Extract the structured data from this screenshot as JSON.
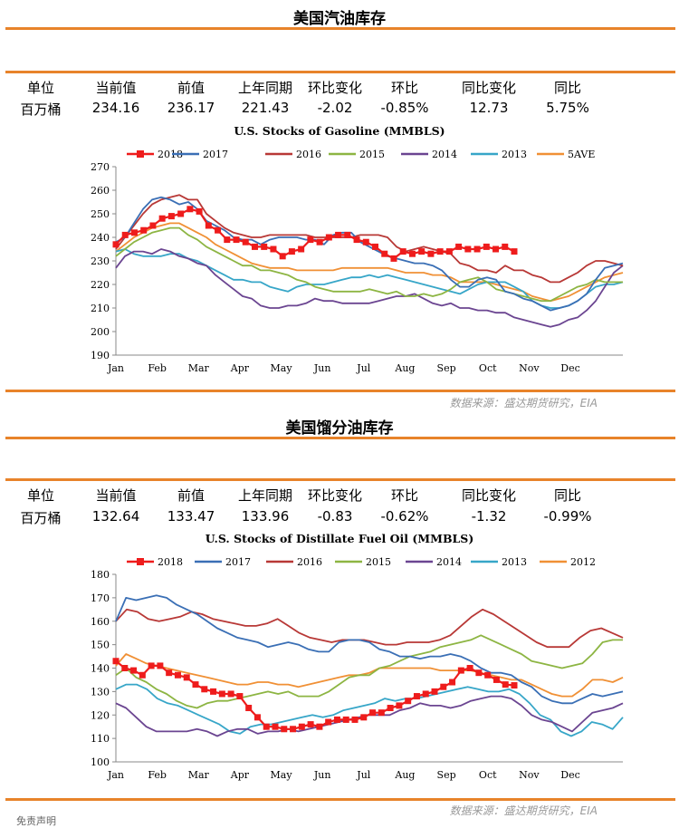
{
  "source_text": "数据来源：盛达期货研究，EIA",
  "footnote": "免责声明",
  "panels": [
    {
      "title": "美国汽油库存",
      "stats": {
        "headers": [
          "单位",
          "当前值",
          "前值",
          "上年同期",
          "环比变化",
          "环比",
          "同比变化",
          "同比"
        ],
        "values": [
          "百万桶",
          "234.16",
          "236.17",
          "221.43",
          "-2.02",
          "-0.85%",
          "12.73",
          "5.75%"
        ]
      }
    },
    {
      "title": "美国馏分油库存",
      "stats": {
        "headers": [
          "单位",
          "当前值",
          "前值",
          "上年同期",
          "环比变化",
          "环比",
          "同比变化",
          "同比"
        ],
        "values": [
          "百万桶",
          "132.64",
          "133.47",
          "133.96",
          "-0.83",
          "-0.62%",
          "-1.32",
          "-0.99%"
        ]
      }
    }
  ],
  "chart_data": [
    {
      "type": "line",
      "title": "U.S. Stocks of  Gasoline (MMBLS)",
      "x_ticks": [
        "Jan",
        "Feb",
        "Mar",
        "Apr",
        "May",
        "Jun",
        "Jul",
        "Aug",
        "Sep",
        "Oct",
        "Nov",
        "Dec"
      ],
      "x_range": [
        "Jan",
        "Dec"
      ],
      "ylim": [
        190,
        270
      ],
      "y_ticks": [
        190,
        200,
        210,
        220,
        230,
        240,
        250,
        260,
        270
      ],
      "grid": false,
      "legend_position": "top",
      "series": [
        {
          "name": "2018",
          "color": "#ee1c1c",
          "markers": true,
          "values": [
            237,
            241,
            242,
            243,
            245,
            248,
            249,
            250,
            252,
            251,
            245,
            243,
            239,
            239,
            238,
            236,
            236,
            235,
            232,
            234,
            235,
            239,
            238,
            240,
            241,
            241,
            239,
            238,
            236,
            233,
            231,
            234,
            233,
            234,
            233,
            234,
            234,
            236,
            235,
            235,
            236,
            235,
            236,
            234
          ]
        },
        {
          "name": "2017",
          "color": "#3a6fb5",
          "values": [
            238,
            240,
            246,
            252,
            256,
            257,
            256,
            254,
            255,
            252,
            247,
            245,
            243,
            240,
            239,
            239,
            237,
            239,
            240,
            240,
            240,
            239,
            239,
            237,
            241,
            242,
            242,
            238,
            236,
            234,
            232,
            231,
            230,
            229,
            229,
            228,
            226,
            222,
            219,
            219,
            222,
            223,
            222,
            217,
            216,
            214,
            213,
            211,
            209,
            210,
            211,
            213,
            216,
            222,
            227,
            228,
            229
          ]
        },
        {
          "name": "2016",
          "color": "#b83836",
          "values": [
            235,
            240,
            245,
            250,
            254,
            256,
            257,
            258,
            256,
            256,
            250,
            247,
            244,
            242,
            241,
            240,
            240,
            241,
            241,
            241,
            241,
            241,
            240,
            240,
            240,
            240,
            240,
            241,
            241,
            241,
            240,
            236,
            234,
            235,
            236,
            235,
            234,
            233,
            229,
            228,
            226,
            226,
            225,
            228,
            226,
            226,
            224,
            223,
            221,
            221,
            223,
            225,
            228,
            230,
            230,
            229,
            228
          ]
        },
        {
          "name": "2015",
          "color": "#8db543",
          "values": [
            232,
            235,
            238,
            240,
            242,
            243,
            244,
            244,
            241,
            239,
            236,
            234,
            232,
            230,
            228,
            228,
            226,
            226,
            225,
            224,
            222,
            221,
            219,
            218,
            217,
            217,
            217,
            217,
            218,
            217,
            216,
            217,
            215,
            215,
            216,
            215,
            216,
            218,
            221,
            222,
            223,
            221,
            218,
            217,
            216,
            215,
            214,
            213,
            213,
            215,
            217,
            219,
            220,
            222,
            221,
            221,
            221
          ]
        },
        {
          "name": "2014",
          "color": "#6b4591",
          "values": [
            227,
            232,
            234,
            234,
            233,
            235,
            234,
            232,
            231,
            229,
            228,
            224,
            221,
            218,
            215,
            214,
            211,
            210,
            210,
            211,
            211,
            212,
            214,
            213,
            213,
            212,
            212,
            212,
            212,
            213,
            214,
            215,
            215,
            216,
            214,
            212,
            211,
            212,
            210,
            210,
            209,
            209,
            208,
            208,
            206,
            205,
            204,
            203,
            202,
            203,
            205,
            206,
            209,
            213,
            219,
            225,
            228
          ]
        },
        {
          "name": "2013",
          "color": "#37a6c8",
          "values": [
            234,
            235,
            233,
            232,
            232,
            232,
            233,
            233,
            231,
            230,
            228,
            226,
            224,
            222,
            222,
            221,
            221,
            219,
            218,
            217,
            219,
            220,
            220,
            220,
            221,
            222,
            223,
            223,
            224,
            223,
            224,
            223,
            222,
            221,
            220,
            219,
            218,
            217,
            216,
            218,
            220,
            221,
            221,
            221,
            219,
            217,
            213,
            211,
            210,
            210,
            211,
            213,
            216,
            219,
            220,
            220,
            221
          ]
        },
        {
          "name": "5AVE",
          "color": "#f09035",
          "values": [
            234,
            237,
            240,
            242,
            244,
            245,
            246,
            246,
            244,
            242,
            240,
            237,
            235,
            233,
            231,
            229,
            228,
            227,
            227,
            227,
            226,
            226,
            226,
            226,
            226,
            227,
            227,
            227,
            227,
            227,
            227,
            226,
            225,
            225,
            225,
            224,
            224,
            223,
            221,
            221,
            221,
            221,
            220,
            219,
            218,
            217,
            215,
            214,
            213,
            214,
            215,
            217,
            219,
            221,
            223,
            224,
            225
          ]
        }
      ]
    },
    {
      "type": "line",
      "title": "U.S.  Stocks of Distillate Fuel Oil (MMBLS)",
      "x_ticks": [
        "Jan",
        "Feb",
        "Mar",
        "Apr",
        "May",
        "Jun",
        "Jul",
        "Aug",
        "Sep",
        "Oct",
        "Nov",
        "Dec"
      ],
      "x_range": [
        "Jan",
        "Dec"
      ],
      "ylim": [
        100,
        180
      ],
      "y_ticks": [
        100,
        110,
        120,
        130,
        140,
        150,
        160,
        170,
        180
      ],
      "grid": false,
      "legend_position": "top",
      "series": [
        {
          "name": "2018",
          "color": "#ee1c1c",
          "markers": true,
          "values": [
            143,
            140,
            139,
            137,
            141,
            141,
            138,
            137,
            136,
            133,
            131,
            130,
            129,
            129,
            128,
            123,
            119,
            115,
            115,
            114,
            114,
            115,
            116,
            115,
            117,
            118,
            118,
            118,
            119,
            121,
            121,
            123,
            124,
            126,
            128,
            129,
            130,
            132,
            134,
            139,
            140,
            138,
            137,
            135,
            133,
            132.64
          ]
        },
        {
          "name": "2017",
          "color": "#3a6fb5",
          "values": [
            160,
            170,
            169,
            170,
            171,
            170,
            167,
            165,
            163,
            160,
            157,
            155,
            153,
            152,
            151,
            149,
            150,
            151,
            150,
            148,
            147,
            147,
            151,
            152,
            152,
            151,
            148,
            147,
            145,
            145,
            144,
            145,
            145,
            146,
            145,
            143,
            140,
            138,
            138,
            137,
            134,
            132,
            128,
            126,
            125,
            125,
            127,
            129,
            128,
            129,
            130
          ]
        },
        {
          "name": "2016",
          "color": "#b83836",
          "values": [
            160,
            165,
            164,
            161,
            160,
            161,
            162,
            164,
            163,
            161,
            160,
            159,
            158,
            158,
            159,
            161,
            158,
            155,
            153,
            152,
            151,
            152,
            152,
            152,
            151,
            150,
            150,
            151,
            151,
            151,
            152,
            154,
            158,
            162,
            165,
            163,
            160,
            157,
            154,
            151,
            149,
            149,
            149,
            153,
            156,
            157,
            155,
            153
          ]
        },
        {
          "name": "2015",
          "color": "#8db543",
          "values": [
            137,
            140,
            136,
            134,
            131,
            129,
            126,
            124,
            123,
            125,
            126,
            126,
            127,
            128,
            129,
            130,
            129,
            130,
            128,
            128,
            128,
            130,
            133,
            136,
            137,
            137,
            140,
            141,
            143,
            145,
            146,
            147,
            149,
            150,
            151,
            152,
            154,
            152,
            150,
            148,
            146,
            143,
            142,
            141,
            140,
            141,
            142,
            146,
            151,
            152,
            152
          ]
        },
        {
          "name": "2014",
          "color": "#6b4591",
          "values": [
            125,
            123,
            119,
            115,
            113,
            113,
            113,
            113,
            114,
            113,
            111,
            113,
            114,
            114,
            112,
            113,
            113,
            114,
            113,
            114,
            115,
            116,
            117,
            118,
            119,
            120,
            120,
            120,
            122,
            123,
            125,
            124,
            124,
            123,
            124,
            126,
            127,
            128,
            128,
            127,
            124,
            120,
            118,
            117,
            115,
            113,
            117,
            121,
            122,
            123,
            125
          ]
        },
        {
          "name": "2013",
          "color": "#37a6c8",
          "values": [
            131,
            133,
            133,
            131,
            127,
            125,
            124,
            122,
            120,
            118,
            116,
            113,
            112,
            115,
            116,
            116,
            117,
            118,
            119,
            120,
            119,
            120,
            122,
            123,
            124,
            125,
            127,
            126,
            127,
            127,
            128,
            129,
            130,
            131,
            132,
            131,
            130,
            130,
            131,
            129,
            125,
            120,
            118,
            113,
            111,
            113,
            117,
            116,
            114,
            119
          ]
        },
        {
          "name": "2012",
          "color": "#f09035",
          "values": [
            141,
            146,
            144,
            142,
            141,
            140,
            139,
            138,
            137,
            136,
            135,
            134,
            133,
            133,
            134,
            134,
            133,
            133,
            132,
            133,
            134,
            135,
            136,
            137,
            137,
            138,
            140,
            140,
            140,
            140,
            140,
            140,
            139,
            139,
            139,
            139,
            138,
            137,
            136,
            135,
            135,
            133,
            131,
            129,
            128,
            128,
            131,
            135,
            135,
            134,
            136
          ]
        }
      ]
    }
  ]
}
